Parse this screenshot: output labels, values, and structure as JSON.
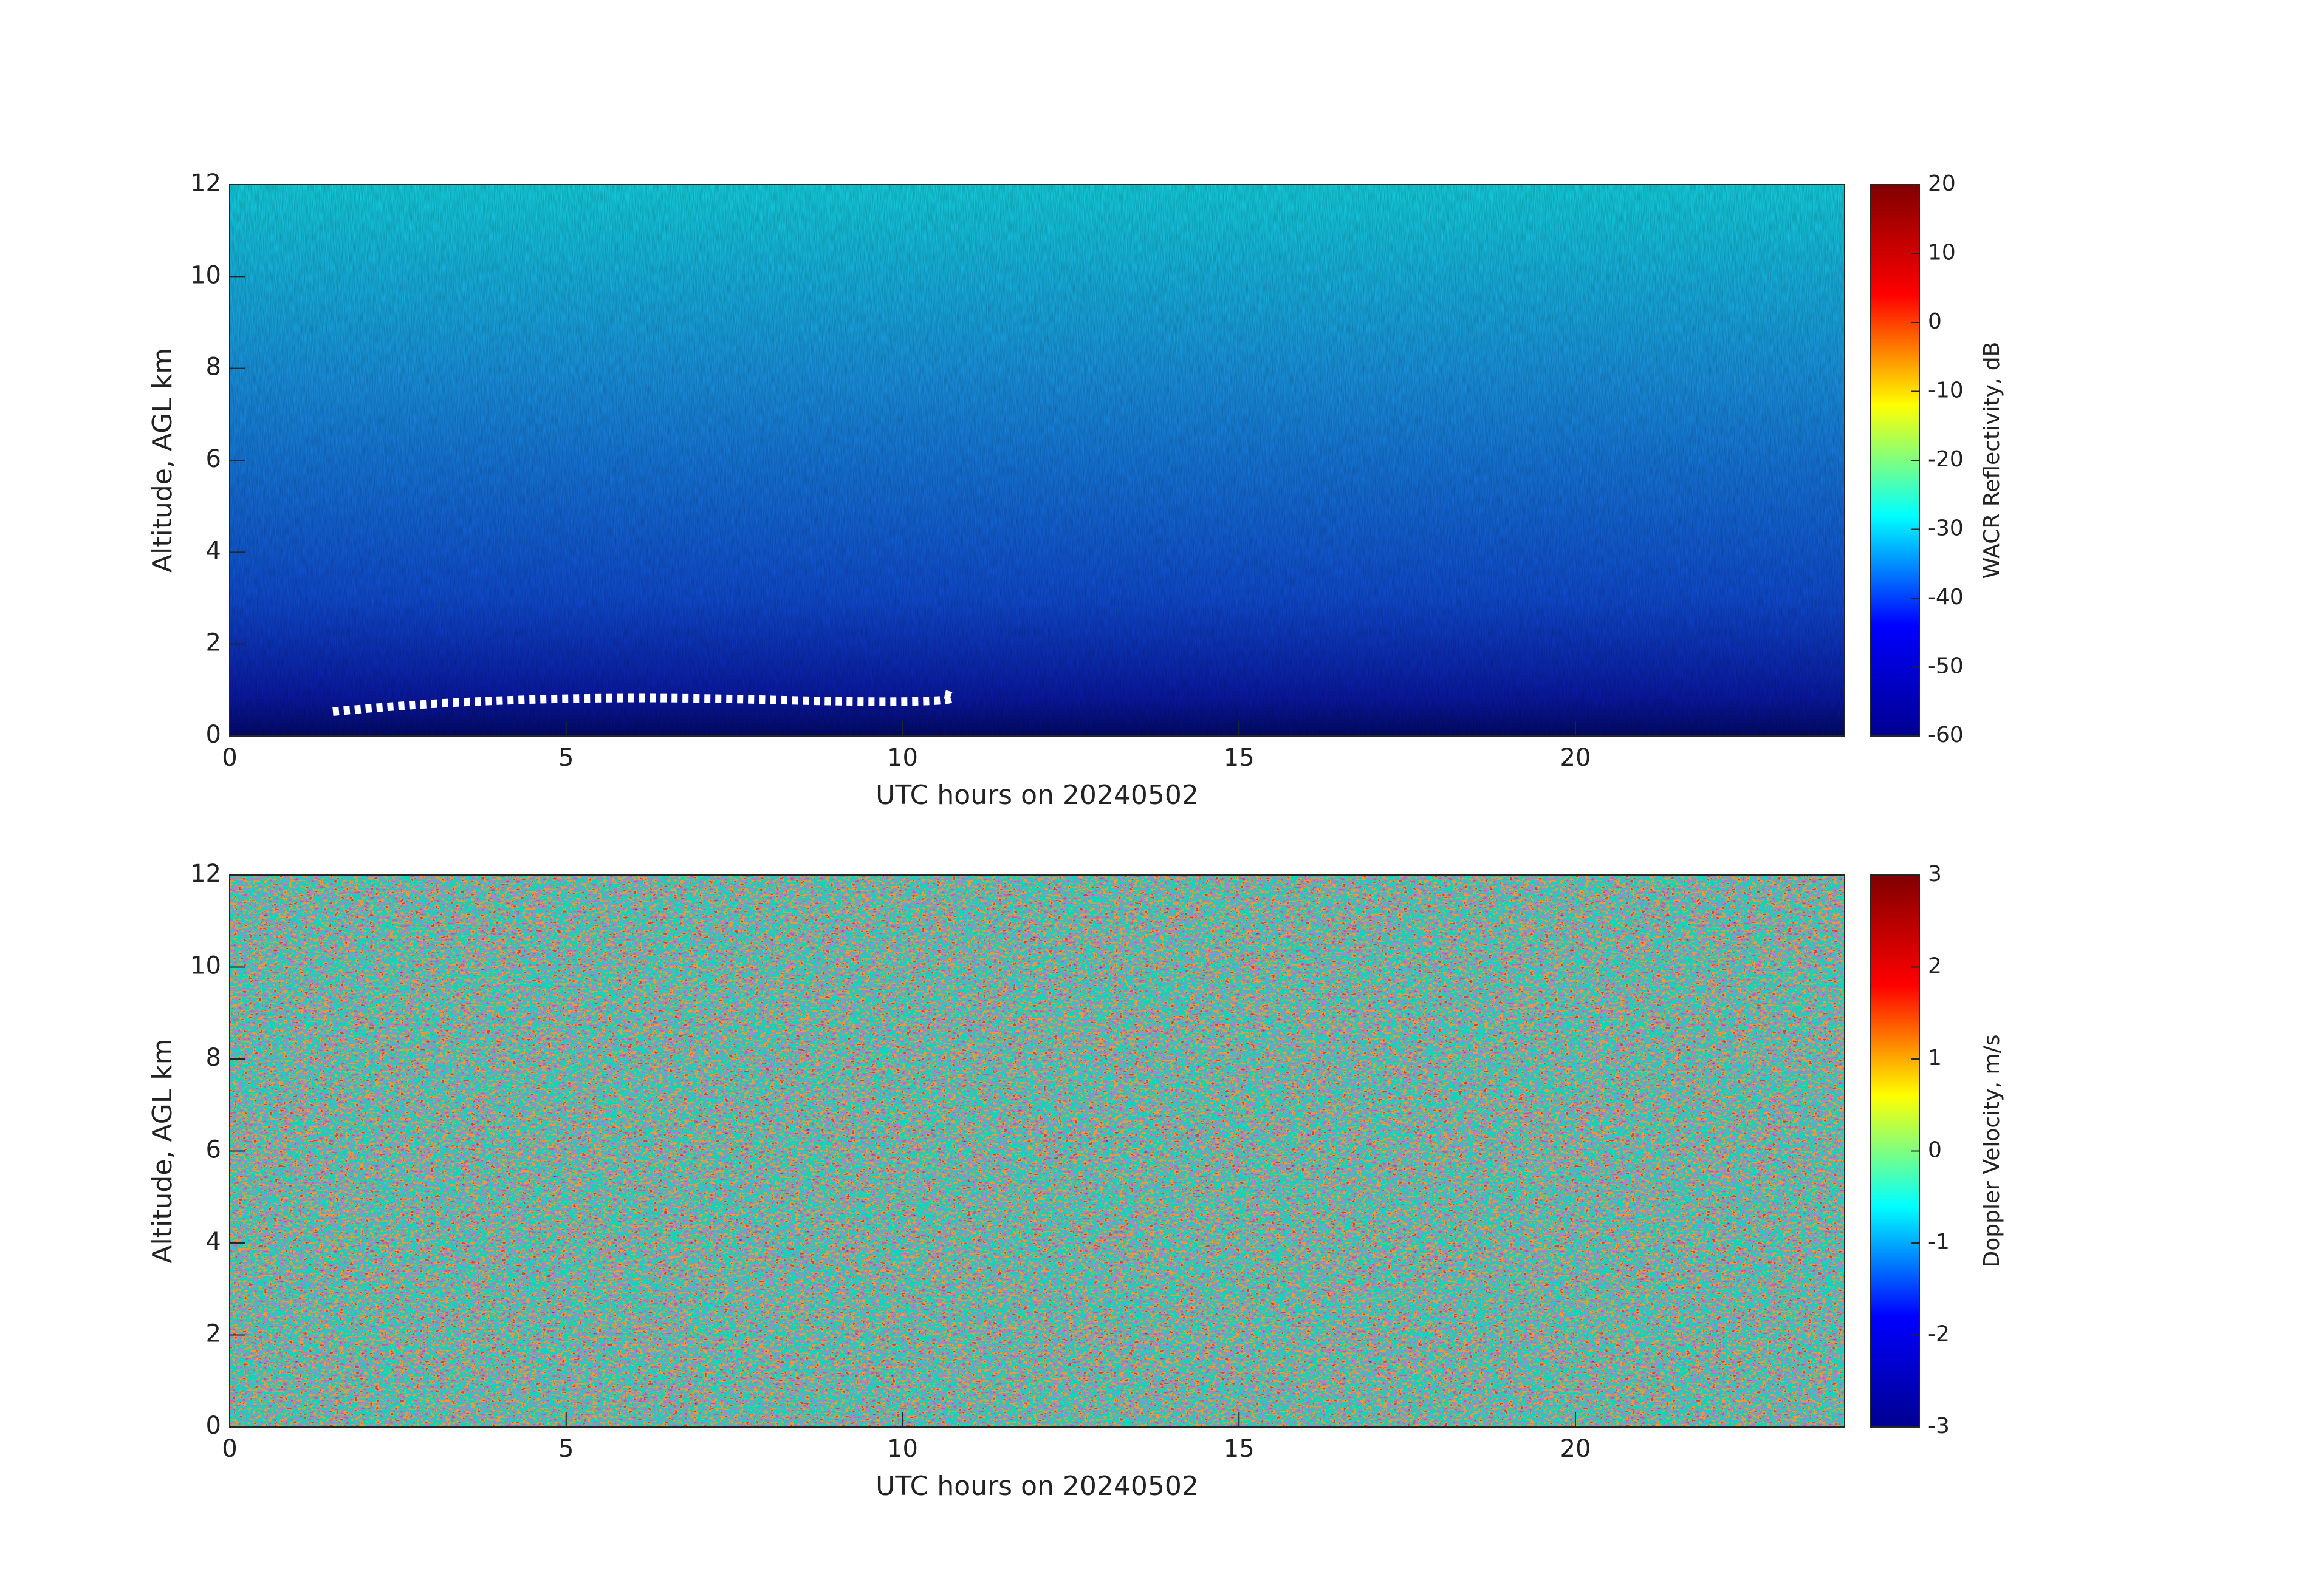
{
  "chart_data": [
    {
      "type": "heatmap",
      "xlabel": "UTC hours on 20240502",
      "ylabel": "Altitude, AGL km",
      "xlim": [
        0,
        24
      ],
      "xticks": [
        0,
        5,
        10,
        15,
        20
      ],
      "ylim": [
        0,
        12
      ],
      "yticks": [
        0,
        2,
        4,
        6,
        8,
        10,
        12
      ],
      "colormap": "jet",
      "colorbar": {
        "label": "WACR Reflectivity, dB",
        "clim": [
          -60,
          20
        ],
        "ticks": [
          -60,
          -50,
          -40,
          -30,
          -20,
          -10,
          0,
          10,
          20
        ]
      }
    },
    {
      "type": "heatmap",
      "xlabel": "UTC hours on 20240502",
      "ylabel": "Altitude, AGL km",
      "xlim": [
        0,
        24
      ],
      "xticks": [
        0,
        5,
        10,
        15,
        20
      ],
      "ylim": [
        0,
        12
      ],
      "yticks": [
        0,
        2,
        4,
        6,
        8,
        10,
        12
      ],
      "colormap": "jet",
      "colorbar": {
        "label": "Doppler Velocity, m/s",
        "clim": [
          -3,
          3
        ],
        "ticks": [
          -3,
          -2,
          -1,
          0,
          1,
          2,
          3
        ]
      }
    }
  ]
}
